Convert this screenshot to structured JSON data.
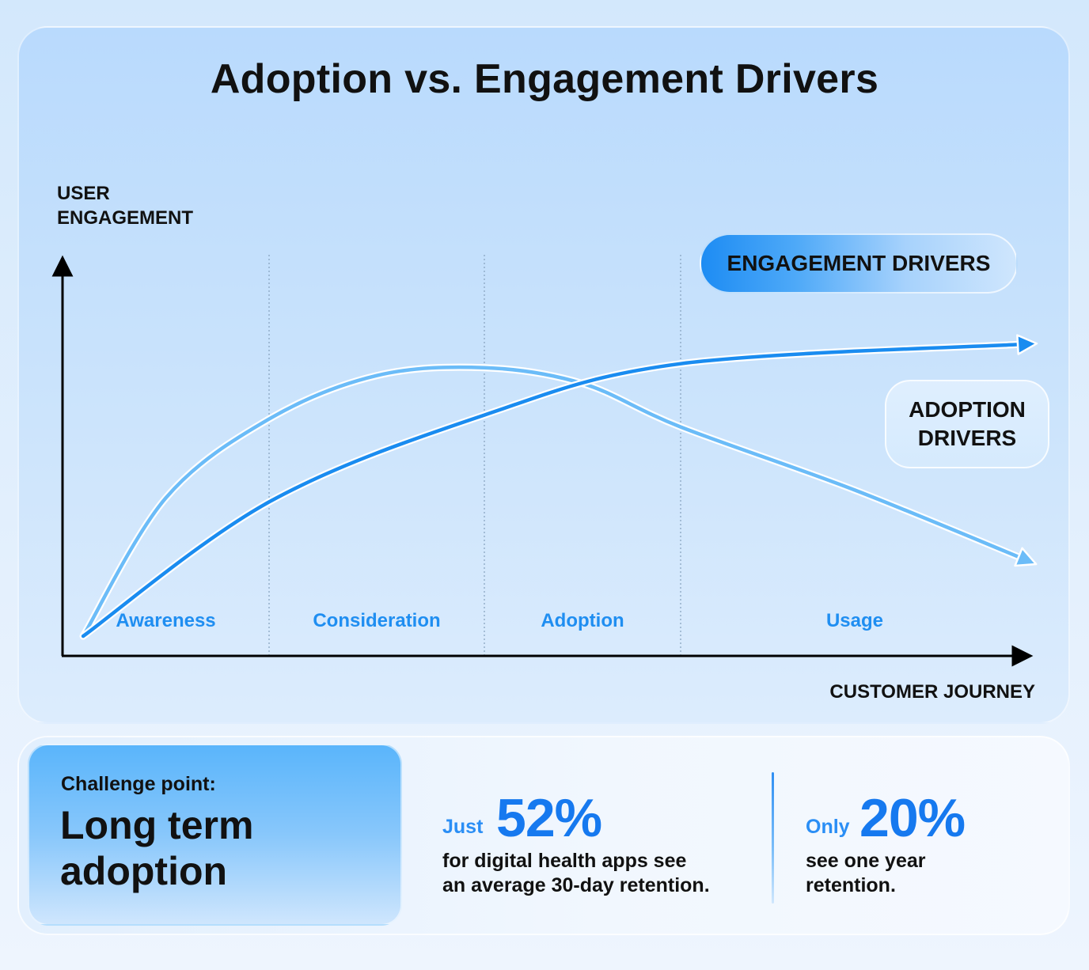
{
  "title": "Adoption vs. Engagement Drivers",
  "colors": {
    "engagement_line": "#1a8cf0",
    "adoption_line": "#6bbcf8",
    "stage_text": "#1f8ef1",
    "stat_number": "#1679ef"
  },
  "chart_data": {
    "type": "line",
    "title": "Adoption vs. Engagement Drivers",
    "ylabel": "USER\nENGAGEMENT",
    "xlabel": "CUSTOMER JOURNEY",
    "categories": [
      "Awareness",
      "Consideration",
      "Adoption",
      "Usage"
    ],
    "x_range": [
      0,
      4
    ],
    "ylim": [
      0,
      1
    ],
    "grid": "vertical dotted stage dividers",
    "series": [
      {
        "name": "ENGAGEMENT DRIVERS",
        "x": [
          0.1,
          1.0,
          2.0,
          3.0,
          4.0
        ],
        "values": [
          0.05,
          0.39,
          0.61,
          0.74,
          0.79
        ]
      },
      {
        "name": "ADOPTION DRIVERS",
        "x": [
          0.1,
          0.5,
          1.0,
          1.5,
          2.0,
          2.5,
          3.0,
          3.5,
          4.0
        ],
        "values": [
          0.05,
          0.4,
          0.6,
          0.71,
          0.73,
          0.69,
          0.58,
          0.42,
          0.24
        ]
      }
    ],
    "legend": [
      "ENGAGEMENT DRIVERS",
      "ADOPTION DRIVERS"
    ]
  },
  "stats": {
    "challenge_label": "Challenge point:",
    "challenge_title": "Long term\nadoption",
    "stat1": {
      "prefix": "Just",
      "value": "52%",
      "desc": "for digital health apps see\nan average 30-day retention."
    },
    "stat2": {
      "prefix": "Only",
      "value": "20%",
      "desc": "see one year\nretention."
    }
  }
}
